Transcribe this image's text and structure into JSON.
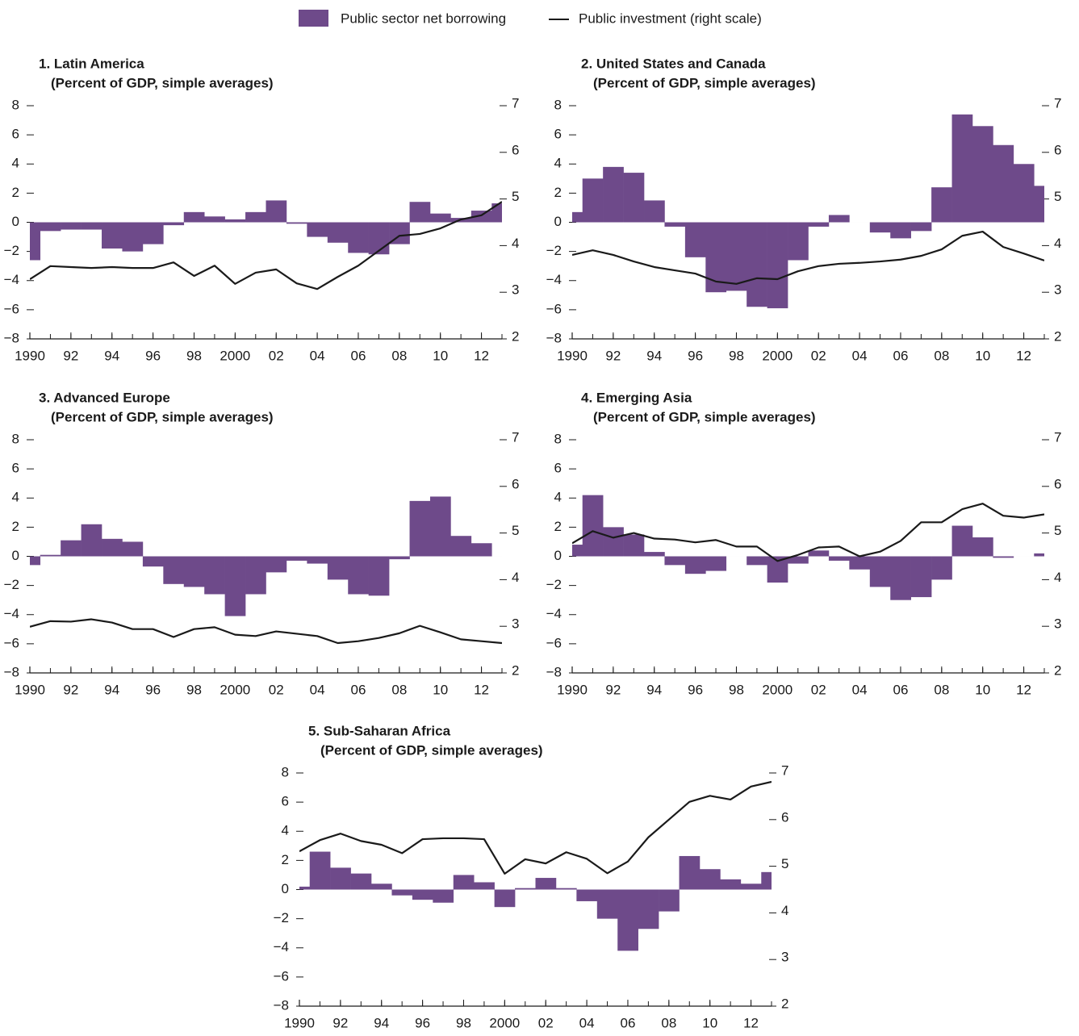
{
  "chart_data": [
    {
      "type": "combo",
      "title": "1. Latin America",
      "subtitle": "(Percent of GDP, simple averages)",
      "x": [
        1990,
        1991,
        1992,
        1993,
        1994,
        1995,
        1996,
        1997,
        1998,
        1999,
        2000,
        2001,
        2002,
        2003,
        2004,
        2005,
        2006,
        2007,
        2008,
        2009,
        2010,
        2011,
        2012,
        2013
      ],
      "xlim": [
        1990,
        2013
      ],
      "xticks": [
        1990,
        {
          "value": 1992,
          "label": "92"
        },
        {
          "value": 1994,
          "label": "94"
        },
        {
          "value": 1996,
          "label": "96"
        },
        {
          "value": 1998,
          "label": "98"
        },
        2000,
        {
          "value": 2002,
          "label": "02"
        },
        {
          "value": 2004,
          "label": "04"
        },
        {
          "value": 2006,
          "label": "06"
        },
        {
          "value": 2008,
          "label": "08"
        },
        {
          "value": 2010,
          "label": "10"
        },
        {
          "value": 2012,
          "label": "12"
        }
      ],
      "ylim": [
        -8,
        8
      ],
      "yticks": [
        {
          "value": -8,
          "label": "−8"
        },
        {
          "value": -6,
          "label": "−6"
        },
        {
          "value": -4,
          "label": "−4"
        },
        {
          "value": -2,
          "label": "−2"
        },
        0,
        2,
        4,
        6,
        8
      ],
      "y2lim": [
        2,
        7
      ],
      "y2ticks": [
        2,
        3,
        4,
        5,
        6,
        7
      ],
      "series": [
        {
          "name": "Public sector net borrowing",
          "type": "bar",
          "color": "#6e4a8a",
          "values": [
            -2.6,
            -0.6,
            -0.5,
            -0.5,
            -1.8,
            -2.0,
            -1.5,
            -0.2,
            0.7,
            0.4,
            0.2,
            0.7,
            1.5,
            -0.1,
            -1.0,
            -1.4,
            -2.1,
            -2.2,
            -1.5,
            1.4,
            0.6,
            0.3,
            0.8,
            1.3
          ]
        },
        {
          "name": "Public investment (right scale)",
          "type": "line",
          "axis": "y2",
          "color": "#1a1a1a",
          "values": [
            3.28,
            3.56,
            3.54,
            3.52,
            3.54,
            3.52,
            3.52,
            3.64,
            3.35,
            3.57,
            3.18,
            3.42,
            3.49,
            3.19,
            3.07,
            3.33,
            3.57,
            3.89,
            4.21,
            4.25,
            4.37,
            4.56,
            4.65,
            4.94
          ]
        }
      ]
    },
    {
      "type": "combo",
      "title": "2. United States and Canada",
      "subtitle": "(Percent of GDP, simple averages)",
      "x": [
        1990,
        1991,
        1992,
        1993,
        1994,
        1995,
        1996,
        1997,
        1998,
        1999,
        2000,
        2001,
        2002,
        2003,
        2004,
        2005,
        2006,
        2007,
        2008,
        2009,
        2010,
        2011,
        2012,
        2013
      ],
      "xlim": [
        1990,
        2013
      ],
      "xticks": [
        1990,
        {
          "value": 1992,
          "label": "92"
        },
        {
          "value": 1994,
          "label": "94"
        },
        {
          "value": 1996,
          "label": "96"
        },
        {
          "value": 1998,
          "label": "98"
        },
        2000,
        {
          "value": 2002,
          "label": "02"
        },
        {
          "value": 2004,
          "label": "04"
        },
        {
          "value": 2006,
          "label": "06"
        },
        {
          "value": 2008,
          "label": "08"
        },
        {
          "value": 2010,
          "label": "10"
        },
        {
          "value": 2012,
          "label": "12"
        }
      ],
      "ylim": [
        -8,
        8
      ],
      "yticks": [
        {
          "value": -8,
          "label": "−8"
        },
        {
          "value": -6,
          "label": "−6"
        },
        {
          "value": -4,
          "label": "−4"
        },
        {
          "value": -2,
          "label": "−2"
        },
        0,
        2,
        4,
        6,
        8
      ],
      "y2lim": [
        2,
        7
      ],
      "y2ticks": [
        2,
        3,
        4,
        5,
        6,
        7
      ],
      "series": [
        {
          "name": "Public sector net borrowing",
          "type": "bar",
          "color": "#6e4a8a",
          "values": [
            0.7,
            3.0,
            3.8,
            3.4,
            1.5,
            -0.3,
            -2.4,
            -4.8,
            -4.7,
            -5.8,
            -5.9,
            -2.6,
            -0.3,
            0.5,
            0.0,
            -0.7,
            -1.1,
            -0.6,
            2.4,
            7.4,
            6.6,
            5.3,
            4.0,
            2.5
          ]
        },
        {
          "name": "Public investment (right scale)",
          "type": "line",
          "axis": "y2",
          "color": "#1a1a1a",
          "values": [
            3.8,
            3.9,
            3.8,
            3.66,
            3.54,
            3.47,
            3.4,
            3.23,
            3.18,
            3.3,
            3.28,
            3.45,
            3.56,
            3.61,
            3.63,
            3.66,
            3.7,
            3.78,
            3.92,
            4.21,
            4.3,
            3.97,
            3.83,
            3.68
          ]
        }
      ]
    },
    {
      "type": "combo",
      "title": "3. Advanced Europe",
      "subtitle": "(Percent of GDP, simple averages)",
      "x": [
        1990,
        1991,
        1992,
        1993,
        1994,
        1995,
        1996,
        1997,
        1998,
        1999,
        2000,
        2001,
        2002,
        2003,
        2004,
        2005,
        2006,
        2007,
        2008,
        2009,
        2010,
        2011,
        2012,
        2013
      ],
      "xlim": [
        1990,
        2013
      ],
      "xticks": [
        1990,
        {
          "value": 1992,
          "label": "92"
        },
        {
          "value": 1994,
          "label": "94"
        },
        {
          "value": 1996,
          "label": "96"
        },
        {
          "value": 1998,
          "label": "98"
        },
        2000,
        {
          "value": 2002,
          "label": "02"
        },
        {
          "value": 2004,
          "label": "04"
        },
        {
          "value": 2006,
          "label": "06"
        },
        {
          "value": 2008,
          "label": "08"
        },
        {
          "value": 2010,
          "label": "10"
        },
        {
          "value": 2012,
          "label": "12"
        }
      ],
      "ylim": [
        -8,
        8
      ],
      "yticks": [
        {
          "value": -8,
          "label": "−8"
        },
        {
          "value": -6,
          "label": "−6"
        },
        {
          "value": -4,
          "label": "−4"
        },
        {
          "value": -2,
          "label": "−2"
        },
        0,
        2,
        4,
        6,
        8
      ],
      "y2lim": [
        2,
        7
      ],
      "y2ticks": [
        2,
        3,
        4,
        5,
        6,
        7
      ],
      "series": [
        {
          "name": "Public sector net borrowing",
          "type": "bar",
          "color": "#6e4a8a",
          "values": [
            -0.6,
            0.1,
            1.1,
            2.2,
            1.2,
            1.0,
            -0.7,
            -1.9,
            -2.1,
            -2.6,
            -4.1,
            -2.6,
            -1.1,
            -0.3,
            -0.5,
            -1.6,
            -2.6,
            -2.7,
            -0.2,
            3.8,
            4.1,
            1.4,
            0.9,
            0.0
          ]
        },
        {
          "name": "Public investment (right scale)",
          "type": "line",
          "axis": "y2",
          "color": "#1a1a1a",
          "values": [
            2.99,
            3.11,
            3.1,
            3.15,
            3.08,
            2.94,
            2.94,
            2.77,
            2.94,
            2.98,
            2.82,
            2.79,
            2.89,
            2.84,
            2.79,
            2.64,
            2.68,
            2.75,
            2.85,
            3.01,
            2.87,
            2.72,
            2.68,
            2.64
          ]
        }
      ]
    },
    {
      "type": "combo",
      "title": "4. Emerging Asia",
      "subtitle": "(Percent of GDP, simple averages)",
      "x": [
        1990,
        1991,
        1992,
        1993,
        1994,
        1995,
        1996,
        1997,
        1998,
        1999,
        2000,
        2001,
        2002,
        2003,
        2004,
        2005,
        2006,
        2007,
        2008,
        2009,
        2010,
        2011,
        2012,
        2013
      ],
      "xlim": [
        1990,
        2013
      ],
      "xticks": [
        1990,
        {
          "value": 1992,
          "label": "92"
        },
        {
          "value": 1994,
          "label": "94"
        },
        {
          "value": 1996,
          "label": "96"
        },
        {
          "value": 1998,
          "label": "98"
        },
        2000,
        {
          "value": 2002,
          "label": "02"
        },
        {
          "value": 2004,
          "label": "04"
        },
        {
          "value": 2006,
          "label": "06"
        },
        {
          "value": 2008,
          "label": "08"
        },
        {
          "value": 2010,
          "label": "10"
        },
        {
          "value": 2012,
          "label": "12"
        }
      ],
      "ylim": [
        -8,
        8
      ],
      "yticks": [
        {
          "value": -8,
          "label": "−8"
        },
        {
          "value": -6,
          "label": "−6"
        },
        {
          "value": -4,
          "label": "−4"
        },
        {
          "value": -2,
          "label": "−2"
        },
        0,
        2,
        4,
        6,
        8
      ],
      "y2lim": [
        2,
        7
      ],
      "y2ticks": [
        2,
        3,
        4,
        5,
        6,
        7
      ],
      "series": [
        {
          "name": "Public sector net borrowing",
          "type": "bar",
          "color": "#6e4a8a",
          "values": [
            0.8,
            4.2,
            2.0,
            1.5,
            0.3,
            -0.6,
            -1.2,
            -1.0,
            0.0,
            -0.6,
            -1.8,
            -0.5,
            0.4,
            -0.3,
            -0.9,
            -2.1,
            -3.0,
            -2.8,
            -1.6,
            2.1,
            1.3,
            -0.1,
            0.0,
            0.2
          ]
        },
        {
          "name": "Public investment (right scale)",
          "type": "line",
          "axis": "y2",
          "color": "#1a1a1a",
          "values": [
            4.78,
            5.04,
            4.9,
            5.0,
            4.88,
            4.86,
            4.8,
            4.85,
            4.71,
            4.71,
            4.4,
            4.53,
            4.69,
            4.71,
            4.5,
            4.6,
            4.83,
            5.23,
            5.23,
            5.51,
            5.63,
            5.37,
            5.33,
            5.4
          ]
        }
      ]
    },
    {
      "type": "combo",
      "title": "5. Sub-Saharan Africa",
      "subtitle": "(Percent of GDP, simple averages)",
      "x": [
        1990,
        1991,
        1992,
        1993,
        1994,
        1995,
        1996,
        1997,
        1998,
        1999,
        2000,
        2001,
        2002,
        2003,
        2004,
        2005,
        2006,
        2007,
        2008,
        2009,
        2010,
        2011,
        2012,
        2013
      ],
      "xlim": [
        1990,
        2013
      ],
      "xticks": [
        1990,
        {
          "value": 1992,
          "label": "92"
        },
        {
          "value": 1994,
          "label": "94"
        },
        {
          "value": 1996,
          "label": "96"
        },
        {
          "value": 1998,
          "label": "98"
        },
        2000,
        {
          "value": 2002,
          "label": "02"
        },
        {
          "value": 2004,
          "label": "04"
        },
        {
          "value": 2006,
          "label": "06"
        },
        {
          "value": 2008,
          "label": "08"
        },
        {
          "value": 2010,
          "label": "10"
        },
        {
          "value": 2012,
          "label": "12"
        }
      ],
      "ylim": [
        -8,
        8
      ],
      "yticks": [
        {
          "value": -8,
          "label": "−8"
        },
        {
          "value": -6,
          "label": "−6"
        },
        {
          "value": -4,
          "label": "−4"
        },
        {
          "value": -2,
          "label": "−2"
        },
        0,
        2,
        4,
        6,
        8
      ],
      "y2lim": [
        2,
        7
      ],
      "y2ticks": [
        2,
        3,
        4,
        5,
        6,
        7
      ],
      "series": [
        {
          "name": "Public sector net borrowing",
          "type": "bar",
          "color": "#6e4a8a",
          "values": [
            0.2,
            2.6,
            1.5,
            1.1,
            0.4,
            -0.4,
            -0.7,
            -0.9,
            1.0,
            0.5,
            -1.2,
            0.1,
            0.8,
            0.1,
            -0.8,
            -2.0,
            -4.2,
            -2.7,
            -1.5,
            2.3,
            1.4,
            0.7,
            0.4,
            1.2
          ]
        },
        {
          "name": "Public investment (right scale)",
          "type": "line",
          "axis": "y2",
          "color": "#1a1a1a",
          "values": [
            5.32,
            5.56,
            5.7,
            5.54,
            5.46,
            5.28,
            5.58,
            5.6,
            5.6,
            5.58,
            4.84,
            5.15,
            5.06,
            5.3,
            5.16,
            4.85,
            5.1,
            5.62,
            6.0,
            6.38,
            6.51,
            6.43,
            6.71,
            6.81
          ]
        }
      ]
    }
  ]
}
